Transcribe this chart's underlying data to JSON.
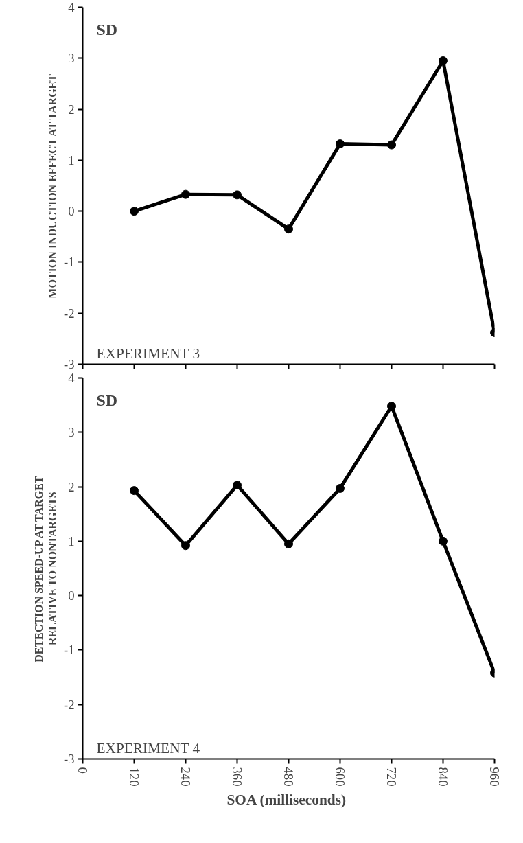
{
  "chart_data": [
    {
      "type": "line",
      "ylabel": "MOTION INDUCTION EFFECT AT TARGET",
      "annotations": [
        "SD",
        "EXPERIMENT 3"
      ],
      "x": [
        120,
        240,
        360,
        480,
        600,
        720,
        840,
        960
      ],
      "series": [
        {
          "color": "#000000",
          "values": [
            0.0,
            0.33,
            0.32,
            -0.35,
            1.32,
            1.3,
            2.95,
            -2.38
          ]
        }
      ],
      "xlim": [
        0,
        960
      ],
      "xticks": [
        0,
        120,
        240,
        360,
        480,
        600,
        720,
        840,
        960
      ],
      "ylim": [
        -3,
        4
      ],
      "yticks": [
        -3,
        -2,
        -1,
        0,
        1,
        2,
        3,
        4
      ],
      "tick_labels": "y",
      "grid": false,
      "marker": "circle",
      "line_style": "solid"
    },
    {
      "type": "line",
      "xlabel": "SOA  (milliseconds)",
      "ylabel": "DETECTION SPEED-UP AT TARGET\nRELATIVE TO NONTARGETS",
      "annotations": [
        "SD",
        "EXPERIMENT 4"
      ],
      "x": [
        120,
        240,
        360,
        480,
        600,
        720,
        840,
        960
      ],
      "series": [
        {
          "color": "#000000",
          "values": [
            1.93,
            0.92,
            2.03,
            0.95,
            1.97,
            3.48,
            1.0,
            -1.42
          ]
        }
      ],
      "xlim": [
        0,
        960
      ],
      "xticks": [
        0,
        120,
        240,
        360,
        480,
        600,
        720,
        840,
        960
      ],
      "ylim": [
        -3,
        4
      ],
      "yticks": [
        -3,
        -2,
        -1,
        0,
        1,
        2,
        3,
        4
      ],
      "grid": false,
      "marker": "circle",
      "line_style": "solid"
    }
  ]
}
